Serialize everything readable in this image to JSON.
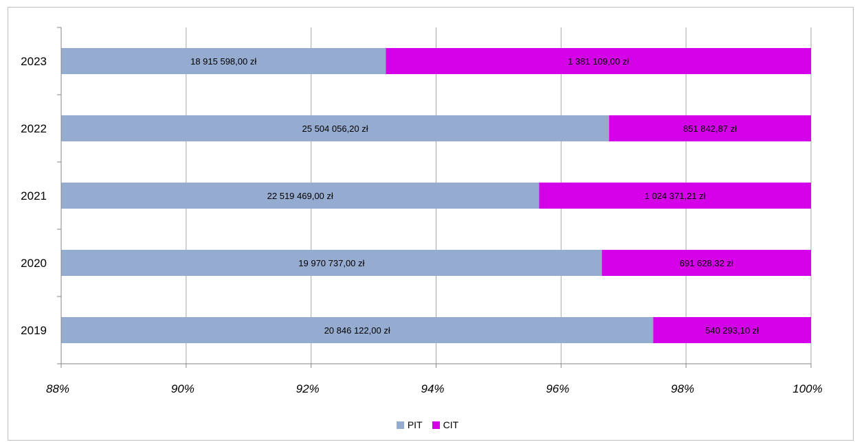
{
  "chart_data": {
    "type": "bar",
    "orientation": "horizontal",
    "stacked": "percent",
    "categories": [
      "2023",
      "2022",
      "2021",
      "2020",
      "2019"
    ],
    "series": [
      {
        "name": "PIT",
        "color": "#95abcf",
        "values": [
          18915598.0,
          25504056.2,
          22519469.0,
          19970737.0,
          20846122.0
        ],
        "labels": [
          "18 915 598,00 zł",
          "25 504 056,20 zł",
          "22 519 469,00 zł",
          "19 970 737,00 zł",
          "20 846 122,00 zł"
        ]
      },
      {
        "name": "CIT",
        "color": "#d400e8",
        "values": [
          1381109.0,
          851842.87,
          1024371.21,
          691628.32,
          540293.1
        ],
        "labels": [
          "1 381 109,00 zł",
          "851 842,87 zł",
          "1 024 371,21 zł",
          "691 628,32 zł",
          "540 293,10 zł"
        ]
      }
    ],
    "xlim": [
      88,
      100
    ],
    "xticks": [
      "88%",
      "90%",
      "92%",
      "94%",
      "96%",
      "98%",
      "100%"
    ],
    "grid": true,
    "legend": "bottom"
  }
}
